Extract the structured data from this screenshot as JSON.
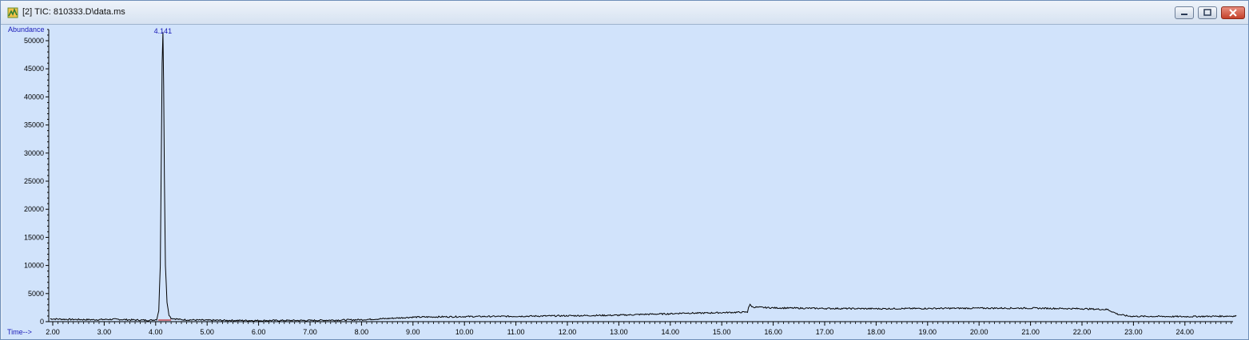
{
  "window": {
    "title": "[2] TIC: 810333.D\\data.ms",
    "icon": "chromatogram-app-icon",
    "controls": [
      "minimize-icon",
      "restore-icon",
      "close-icon"
    ]
  },
  "colors": {
    "plot_background": "#d1e3fb",
    "trace": "#000000",
    "axis_label": "#1a1ab8",
    "peak_label": "#1a1ab8",
    "baseline_marker": "#c00000"
  },
  "chart_data": {
    "type": "line",
    "title": "",
    "xlabel": "Time-->",
    "ylabel": "Abundance",
    "xlim": [
      1.95,
      25.0
    ],
    "ylim": [
      0,
      52000
    ],
    "x_ticks": [
      "2.00",
      "3.00",
      "4.00",
      "5.00",
      "6.00",
      "7.00",
      "8.00",
      "9.00",
      "10.00",
      "11.00",
      "12.00",
      "13.00",
      "14.00",
      "15.00",
      "16.00",
      "17.00",
      "18.00",
      "19.00",
      "20.00",
      "21.00",
      "22.00",
      "23.00",
      "24.00"
    ],
    "y_ticks": [
      "0",
      "5000",
      "10000",
      "15000",
      "20000",
      "25000",
      "30000",
      "35000",
      "40000",
      "45000",
      "50000"
    ],
    "grid": false,
    "peak_labels": [
      {
        "x": 4.141,
        "y": 51500,
        "text": "4.141"
      }
    ],
    "series": [
      {
        "x": [
          1.95,
          2.3,
          2.8,
          3.2,
          3.6,
          3.9,
          4.02,
          4.06,
          4.09,
          4.11,
          4.125,
          4.141,
          4.155,
          4.17,
          4.19,
          4.22,
          4.26,
          4.3,
          4.5,
          5.0,
          6.0,
          7.0,
          7.5,
          8.0,
          8.5,
          9.0,
          10.0,
          11.0,
          12.0,
          13.0,
          13.5,
          14.0,
          14.3,
          14.5,
          15.0,
          15.5,
          15.52,
          15.55,
          15.6,
          16.0,
          17.0,
          18.0,
          19.0,
          20.0,
          21.0,
          22.0,
          22.5,
          22.7,
          22.9,
          23.0,
          24.0,
          25.0
        ],
        "y": [
          500,
          400,
          350,
          420,
          300,
          250,
          400,
          2000,
          10000,
          30000,
          46000,
          51500,
          42000,
          26000,
          10000,
          3500,
          1200,
          600,
          350,
          250,
          200,
          220,
          280,
          350,
          550,
          800,
          900,
          950,
          1050,
          1150,
          1300,
          1400,
          1550,
          1500,
          1600,
          1700,
          2600,
          3000,
          2600,
          2450,
          2350,
          2300,
          2350,
          2400,
          2400,
          2300,
          2150,
          1300,
          1000,
          950,
          900,
          1000
        ]
      }
    ],
    "baseline_markers": [
      {
        "x_start": 4.05,
        "x_end": 4.3,
        "y": 280
      }
    ]
  }
}
